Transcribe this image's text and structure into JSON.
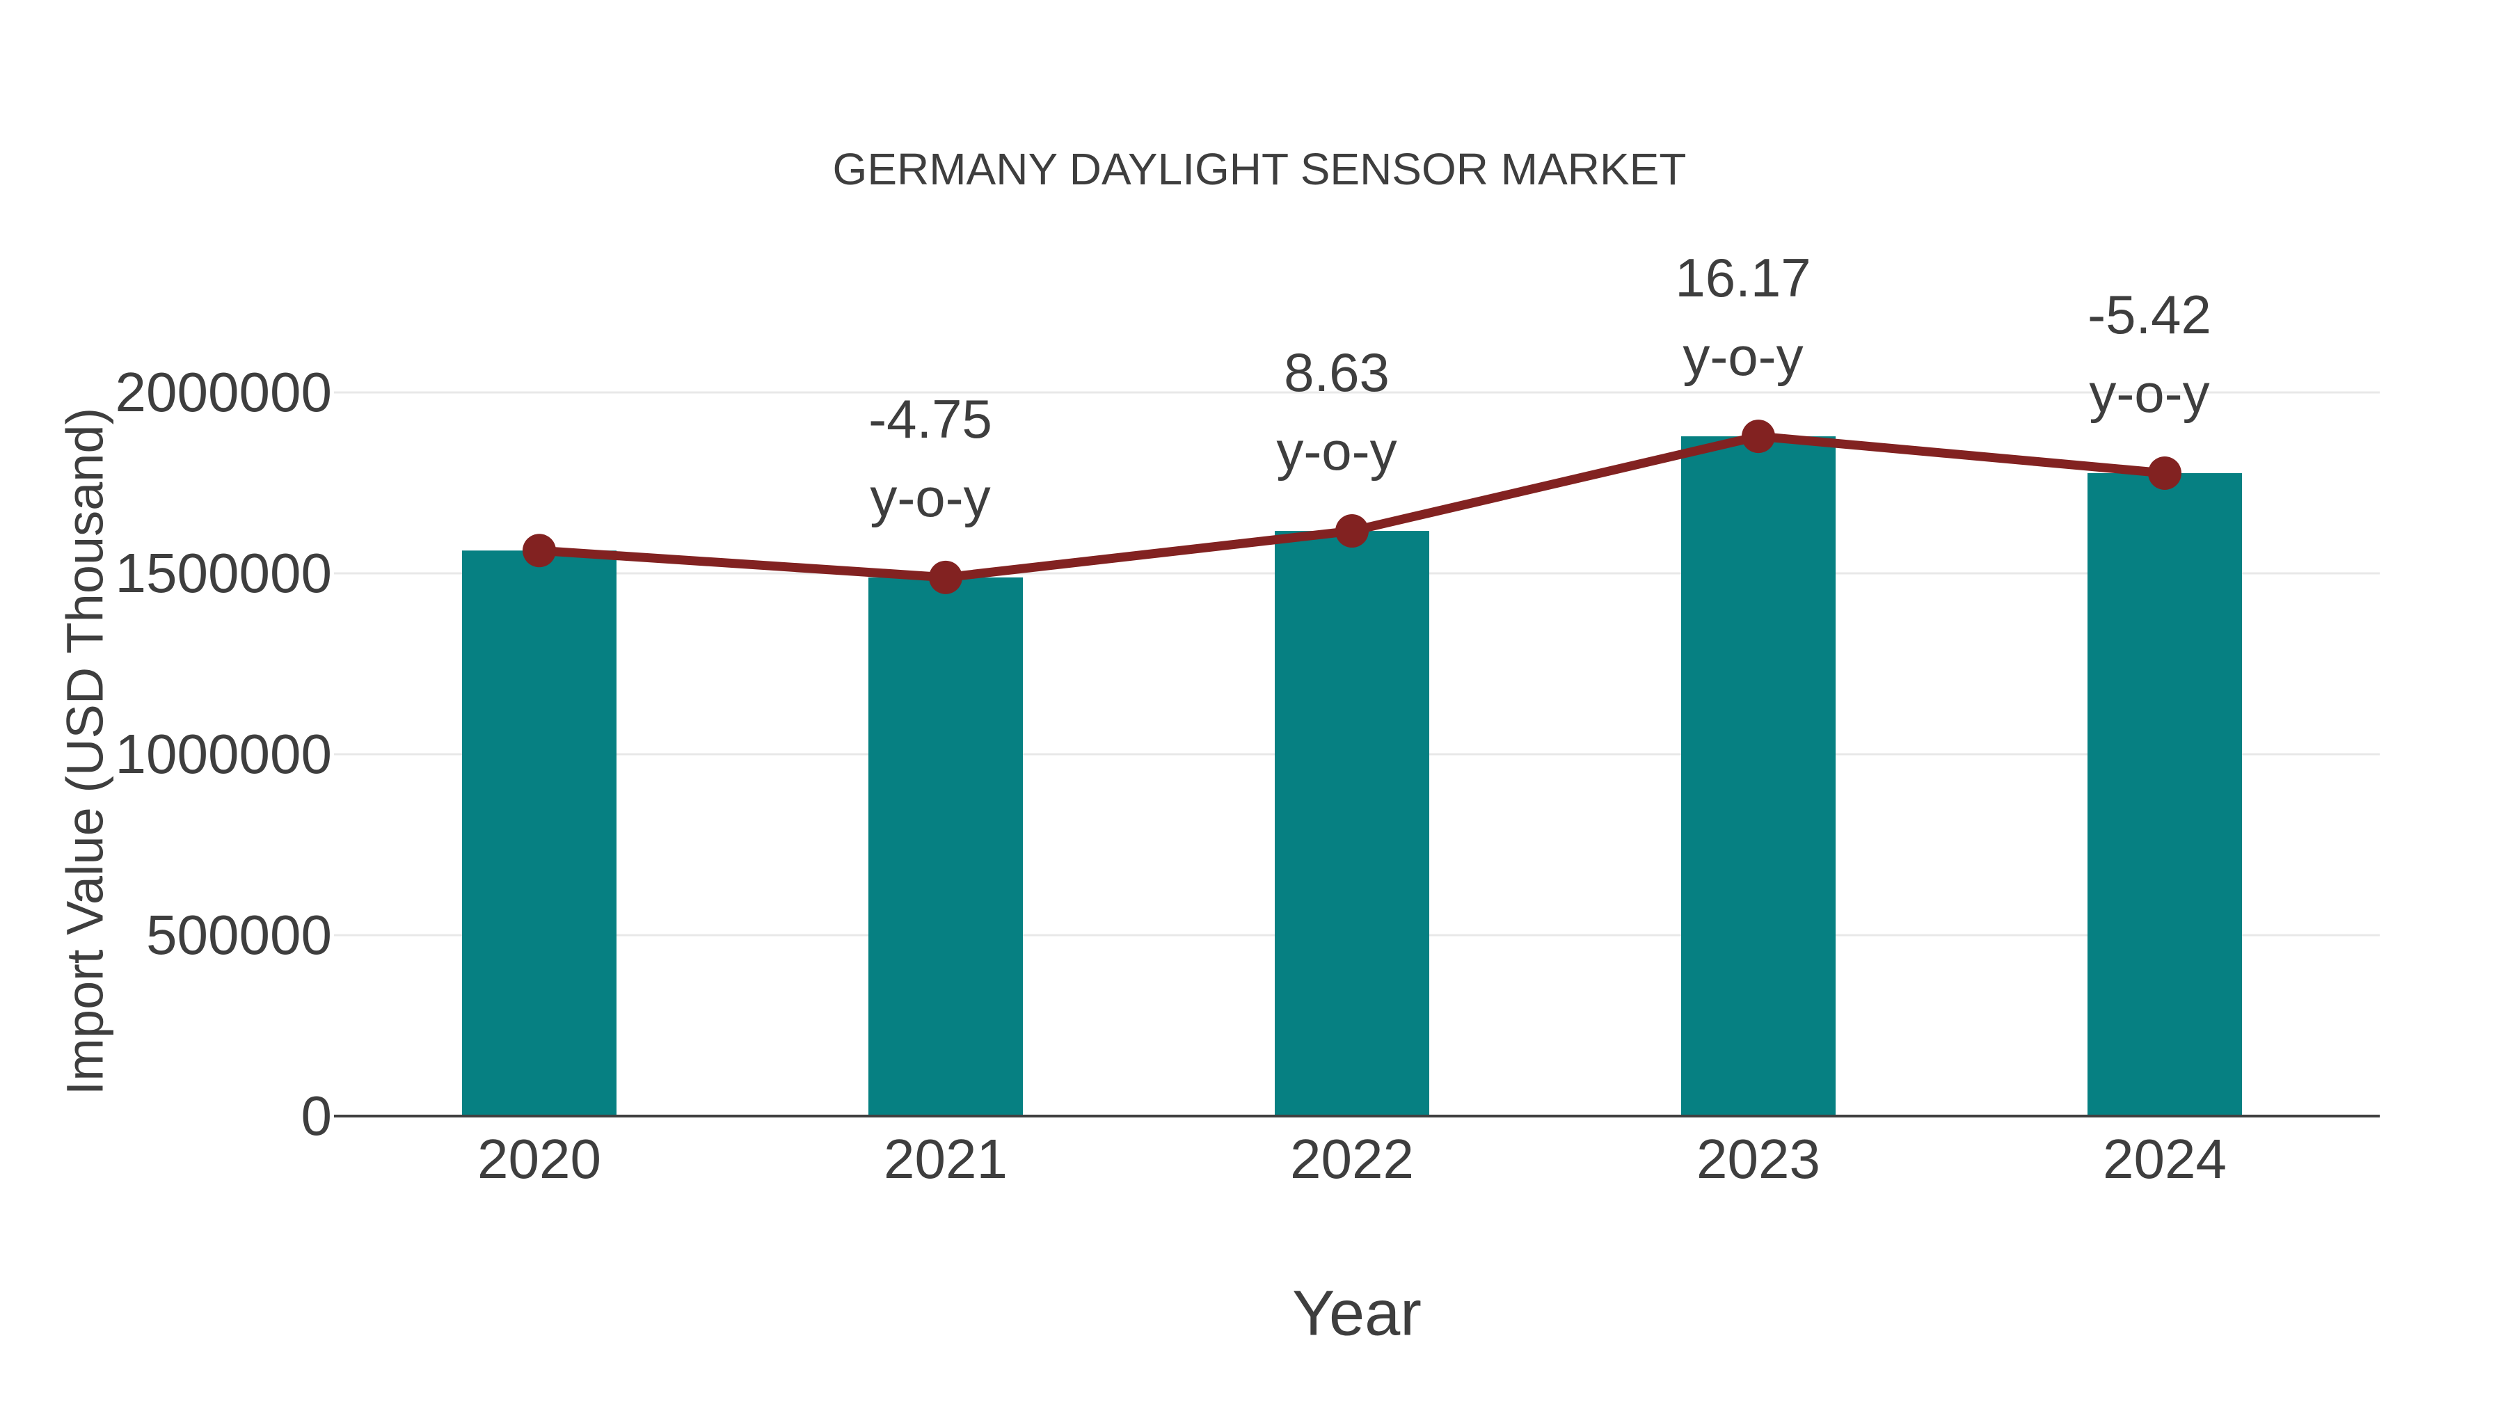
{
  "chart_data": {
    "type": "bar",
    "subtype": "bar-with-line-overlay",
    "title": "GERMANY DAYLIGHT SENSOR MARKET",
    "xlabel": "Year",
    "ylabel": "Import Value (USD Thousand)",
    "categories": [
      "2020",
      "2021",
      "2022",
      "2023",
      "2024"
    ],
    "series": [
      {
        "name": "import-value-bars",
        "type": "bar",
        "color": "#068082",
        "values": [
          1563000,
          1488800,
          1617200,
          1878700,
          1776900
        ]
      },
      {
        "name": "import-value-trend-line",
        "type": "line",
        "color": "#822221",
        "values": [
          1563000,
          1488800,
          1617200,
          1878700,
          1776900
        ]
      }
    ],
    "annotations": [
      {
        "category": "2021",
        "label": "-4.75",
        "sublabel": "y-o-y"
      },
      {
        "category": "2022",
        "label": "8.63",
        "sublabel": "y-o-y"
      },
      {
        "category": "2023",
        "label": "16.17",
        "sublabel": "y-o-y"
      },
      {
        "category": "2024",
        "label": "-5.42",
        "sublabel": "y-o-y"
      }
    ],
    "yticks": [
      0,
      500000,
      1000000,
      1500000,
      2000000
    ],
    "ylim": [
      0,
      2300000
    ],
    "grid": true,
    "legend_position": "none",
    "background_color": "#ffffff",
    "gridline_color": "#e8e8e8",
    "axisline_color": "#3f3f3f",
    "text_color": "#3e3e3e"
  }
}
